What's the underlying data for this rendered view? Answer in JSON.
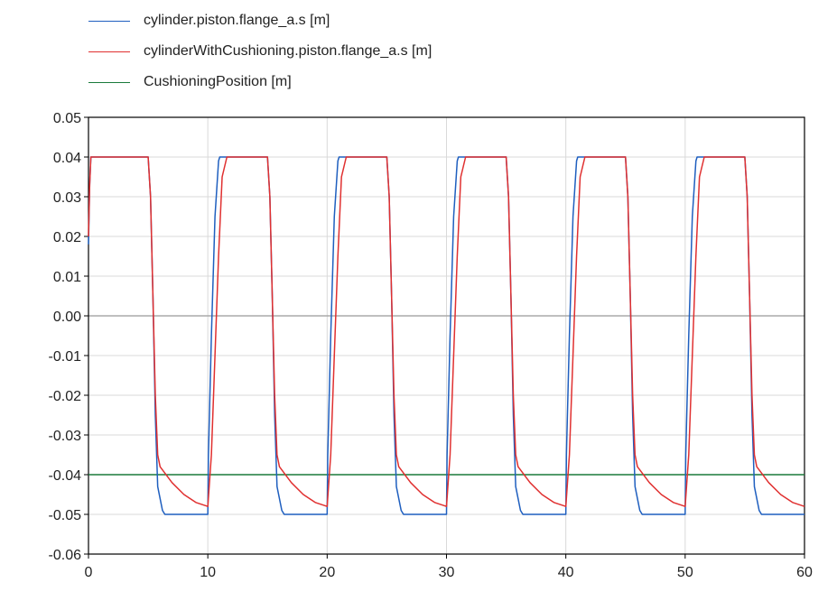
{
  "legend": [
    {
      "label": "cylinder.piston.flange_a.s [m]",
      "color": "#1f5fbf"
    },
    {
      "label": "cylinderWithCushioning.piston.flange_a.s [m]",
      "color": "#e03030"
    },
    {
      "label": "CushioningPosition [m]",
      "color": "#1a7a3a"
    }
  ],
  "chart_data": {
    "type": "line",
    "xlim": [
      0,
      60
    ],
    "ylim": [
      -0.06,
      0.05
    ],
    "xticks": [
      0,
      10,
      20,
      30,
      40,
      50,
      60
    ],
    "xtick_labels": [
      "0",
      "10",
      "20",
      "30",
      "40",
      "50",
      "60"
    ],
    "yticks": [
      0.05,
      0.04,
      0.03,
      0.02,
      0.01,
      0.0,
      -0.01,
      -0.02,
      -0.03,
      -0.04,
      -0.05,
      -0.06
    ],
    "ytick_labels": [
      "0.05",
      "0.04",
      "0.03",
      "0.02",
      "0.01",
      "0.00",
      "-0.01",
      "-0.02",
      "-0.03",
      "-0.04",
      "-0.05",
      "-0.06"
    ],
    "grid": true,
    "series": [
      {
        "name": "cylinder.piston.flange_a.s [m]",
        "color": "#1f5fbf",
        "x": [
          0,
          0.1,
          0.2,
          0.3,
          5.0,
          5.2,
          5.4,
          5.6,
          5.8,
          6.2,
          6.4,
          10.0,
          10.05,
          10.3,
          10.6,
          10.9,
          11.0,
          15.0,
          15.2,
          15.4,
          15.6,
          15.8,
          16.2,
          16.4,
          20.0,
          20.05,
          20.3,
          20.6,
          20.9,
          21.0,
          25.0,
          25.2,
          25.4,
          25.6,
          25.8,
          26.2,
          26.4,
          30.0,
          30.05,
          30.3,
          30.6,
          30.9,
          31.0,
          35.0,
          35.2,
          35.4,
          35.6,
          35.8,
          36.2,
          36.4,
          40.0,
          40.05,
          40.3,
          40.6,
          40.9,
          41.0,
          45.0,
          45.2,
          45.4,
          45.6,
          45.8,
          46.2,
          46.4,
          50.0,
          50.05,
          50.3,
          50.6,
          50.9,
          51.0,
          55.0,
          55.2,
          55.4,
          55.6,
          55.8,
          56.2,
          56.4,
          60.0
        ],
        "y": [
          0.018,
          0.033,
          0.04,
          0.04,
          0.04,
          0.03,
          0.005,
          -0.025,
          -0.043,
          -0.049,
          -0.05,
          -0.05,
          -0.035,
          -0.005,
          0.025,
          0.039,
          0.04,
          0.04,
          0.03,
          0.005,
          -0.025,
          -0.043,
          -0.049,
          -0.05,
          -0.05,
          -0.035,
          -0.005,
          0.025,
          0.039,
          0.04,
          0.04,
          0.03,
          0.005,
          -0.025,
          -0.043,
          -0.049,
          -0.05,
          -0.05,
          -0.035,
          -0.005,
          0.025,
          0.039,
          0.04,
          0.04,
          0.03,
          0.005,
          -0.025,
          -0.043,
          -0.049,
          -0.05,
          -0.05,
          -0.035,
          -0.005,
          0.025,
          0.039,
          0.04,
          0.04,
          0.03,
          0.005,
          -0.025,
          -0.043,
          -0.049,
          -0.05,
          -0.05,
          -0.035,
          -0.005,
          0.025,
          0.039,
          0.04,
          0.04,
          0.03,
          0.005,
          -0.025,
          -0.043,
          -0.049,
          -0.05,
          -0.05
        ]
      },
      {
        "name": "cylinderWithCushioning.piston.flange_a.s [m]",
        "color": "#e03030",
        "x": [
          0,
          0.1,
          0.2,
          0.3,
          5.0,
          5.2,
          5.4,
          5.6,
          5.8,
          6.0,
          7.0,
          8.0,
          9.0,
          10.0,
          10.3,
          10.6,
          10.9,
          11.2,
          11.6,
          12.0,
          15.0,
          15.2,
          15.4,
          15.6,
          15.8,
          16.0,
          17.0,
          18.0,
          19.0,
          20.0,
          20.3,
          20.6,
          20.9,
          21.2,
          21.6,
          22.0,
          25.0,
          25.2,
          25.4,
          25.6,
          25.8,
          26.0,
          27.0,
          28.0,
          29.0,
          30.0,
          30.3,
          30.6,
          30.9,
          31.2,
          31.6,
          32.0,
          35.0,
          35.2,
          35.4,
          35.6,
          35.8,
          36.0,
          37.0,
          38.0,
          39.0,
          40.0,
          40.3,
          40.6,
          40.9,
          41.2,
          41.6,
          42.0,
          45.0,
          45.2,
          45.4,
          45.6,
          45.8,
          46.0,
          47.0,
          48.0,
          49.0,
          50.0,
          50.3,
          50.6,
          50.9,
          51.2,
          51.6,
          52.0,
          55.0,
          55.2,
          55.4,
          55.6,
          55.8,
          56.0,
          57.0,
          58.0,
          59.0,
          60.0
        ],
        "y": [
          0.02,
          0.033,
          0.04,
          0.04,
          0.04,
          0.03,
          0.005,
          -0.02,
          -0.035,
          -0.038,
          -0.042,
          -0.045,
          -0.047,
          -0.048,
          -0.035,
          -0.01,
          0.015,
          0.035,
          0.04,
          0.04,
          0.04,
          0.03,
          0.005,
          -0.02,
          -0.035,
          -0.038,
          -0.042,
          -0.045,
          -0.047,
          -0.048,
          -0.035,
          -0.01,
          0.015,
          0.035,
          0.04,
          0.04,
          0.04,
          0.03,
          0.005,
          -0.02,
          -0.035,
          -0.038,
          -0.042,
          -0.045,
          -0.047,
          -0.048,
          -0.035,
          -0.01,
          0.015,
          0.035,
          0.04,
          0.04,
          0.04,
          0.03,
          0.005,
          -0.02,
          -0.035,
          -0.038,
          -0.042,
          -0.045,
          -0.047,
          -0.048,
          -0.035,
          -0.01,
          0.015,
          0.035,
          0.04,
          0.04,
          0.04,
          0.03,
          0.005,
          -0.02,
          -0.035,
          -0.038,
          -0.042,
          -0.045,
          -0.047,
          -0.048,
          -0.035,
          -0.01,
          0.015,
          0.035,
          0.04,
          0.04,
          0.04,
          0.03,
          0.005,
          -0.02,
          -0.035,
          -0.038,
          -0.042,
          -0.045,
          -0.047,
          -0.048
        ]
      },
      {
        "name": "CushioningPosition [m]",
        "color": "#1a7a3a",
        "x": [
          0,
          60
        ],
        "y": [
          -0.04,
          -0.04
        ]
      }
    ]
  }
}
